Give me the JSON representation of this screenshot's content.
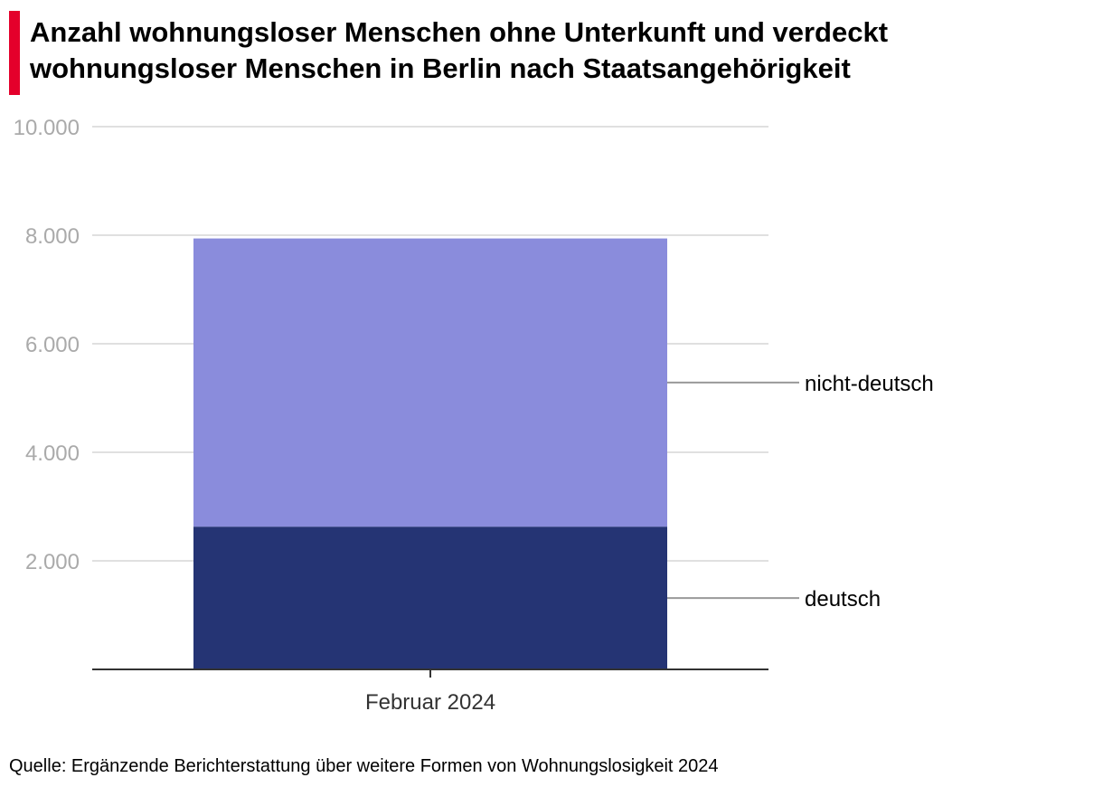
{
  "colors": {
    "accent": "#e4002b",
    "deutsch": "#253474",
    "nicht_deutsch": "#8a8cdc",
    "grid": "#e0e0e0",
    "axis": "#333333",
    "leader": "#999999"
  },
  "chart_data": {
    "type": "bar",
    "stacked": true,
    "title": "Anzahl wohnungsloser Menschen ohne Unterkunft und verdeckt wohnungsloser Menschen in Berlin nach Staatsangehörigkeit",
    "categories": [
      "Februar 2024"
    ],
    "series": [
      {
        "name": "deutsch",
        "values": [
          2630
        ]
      },
      {
        "name": "nicht-deutsch",
        "values": [
          5310
        ]
      }
    ],
    "yticks": [
      2000,
      4000,
      6000,
      8000,
      10000
    ],
    "ytick_labels": [
      "2.000",
      "4.000",
      "6.000",
      "8.000",
      "10.000"
    ],
    "ylim": [
      0,
      10000
    ],
    "xlabel": "",
    "ylabel": "",
    "grid": true,
    "legend": "right, inline labels"
  },
  "source": "Quelle: Ergänzende Berichterstattung über weitere Formen von Wohnungslosigkeit 2024"
}
